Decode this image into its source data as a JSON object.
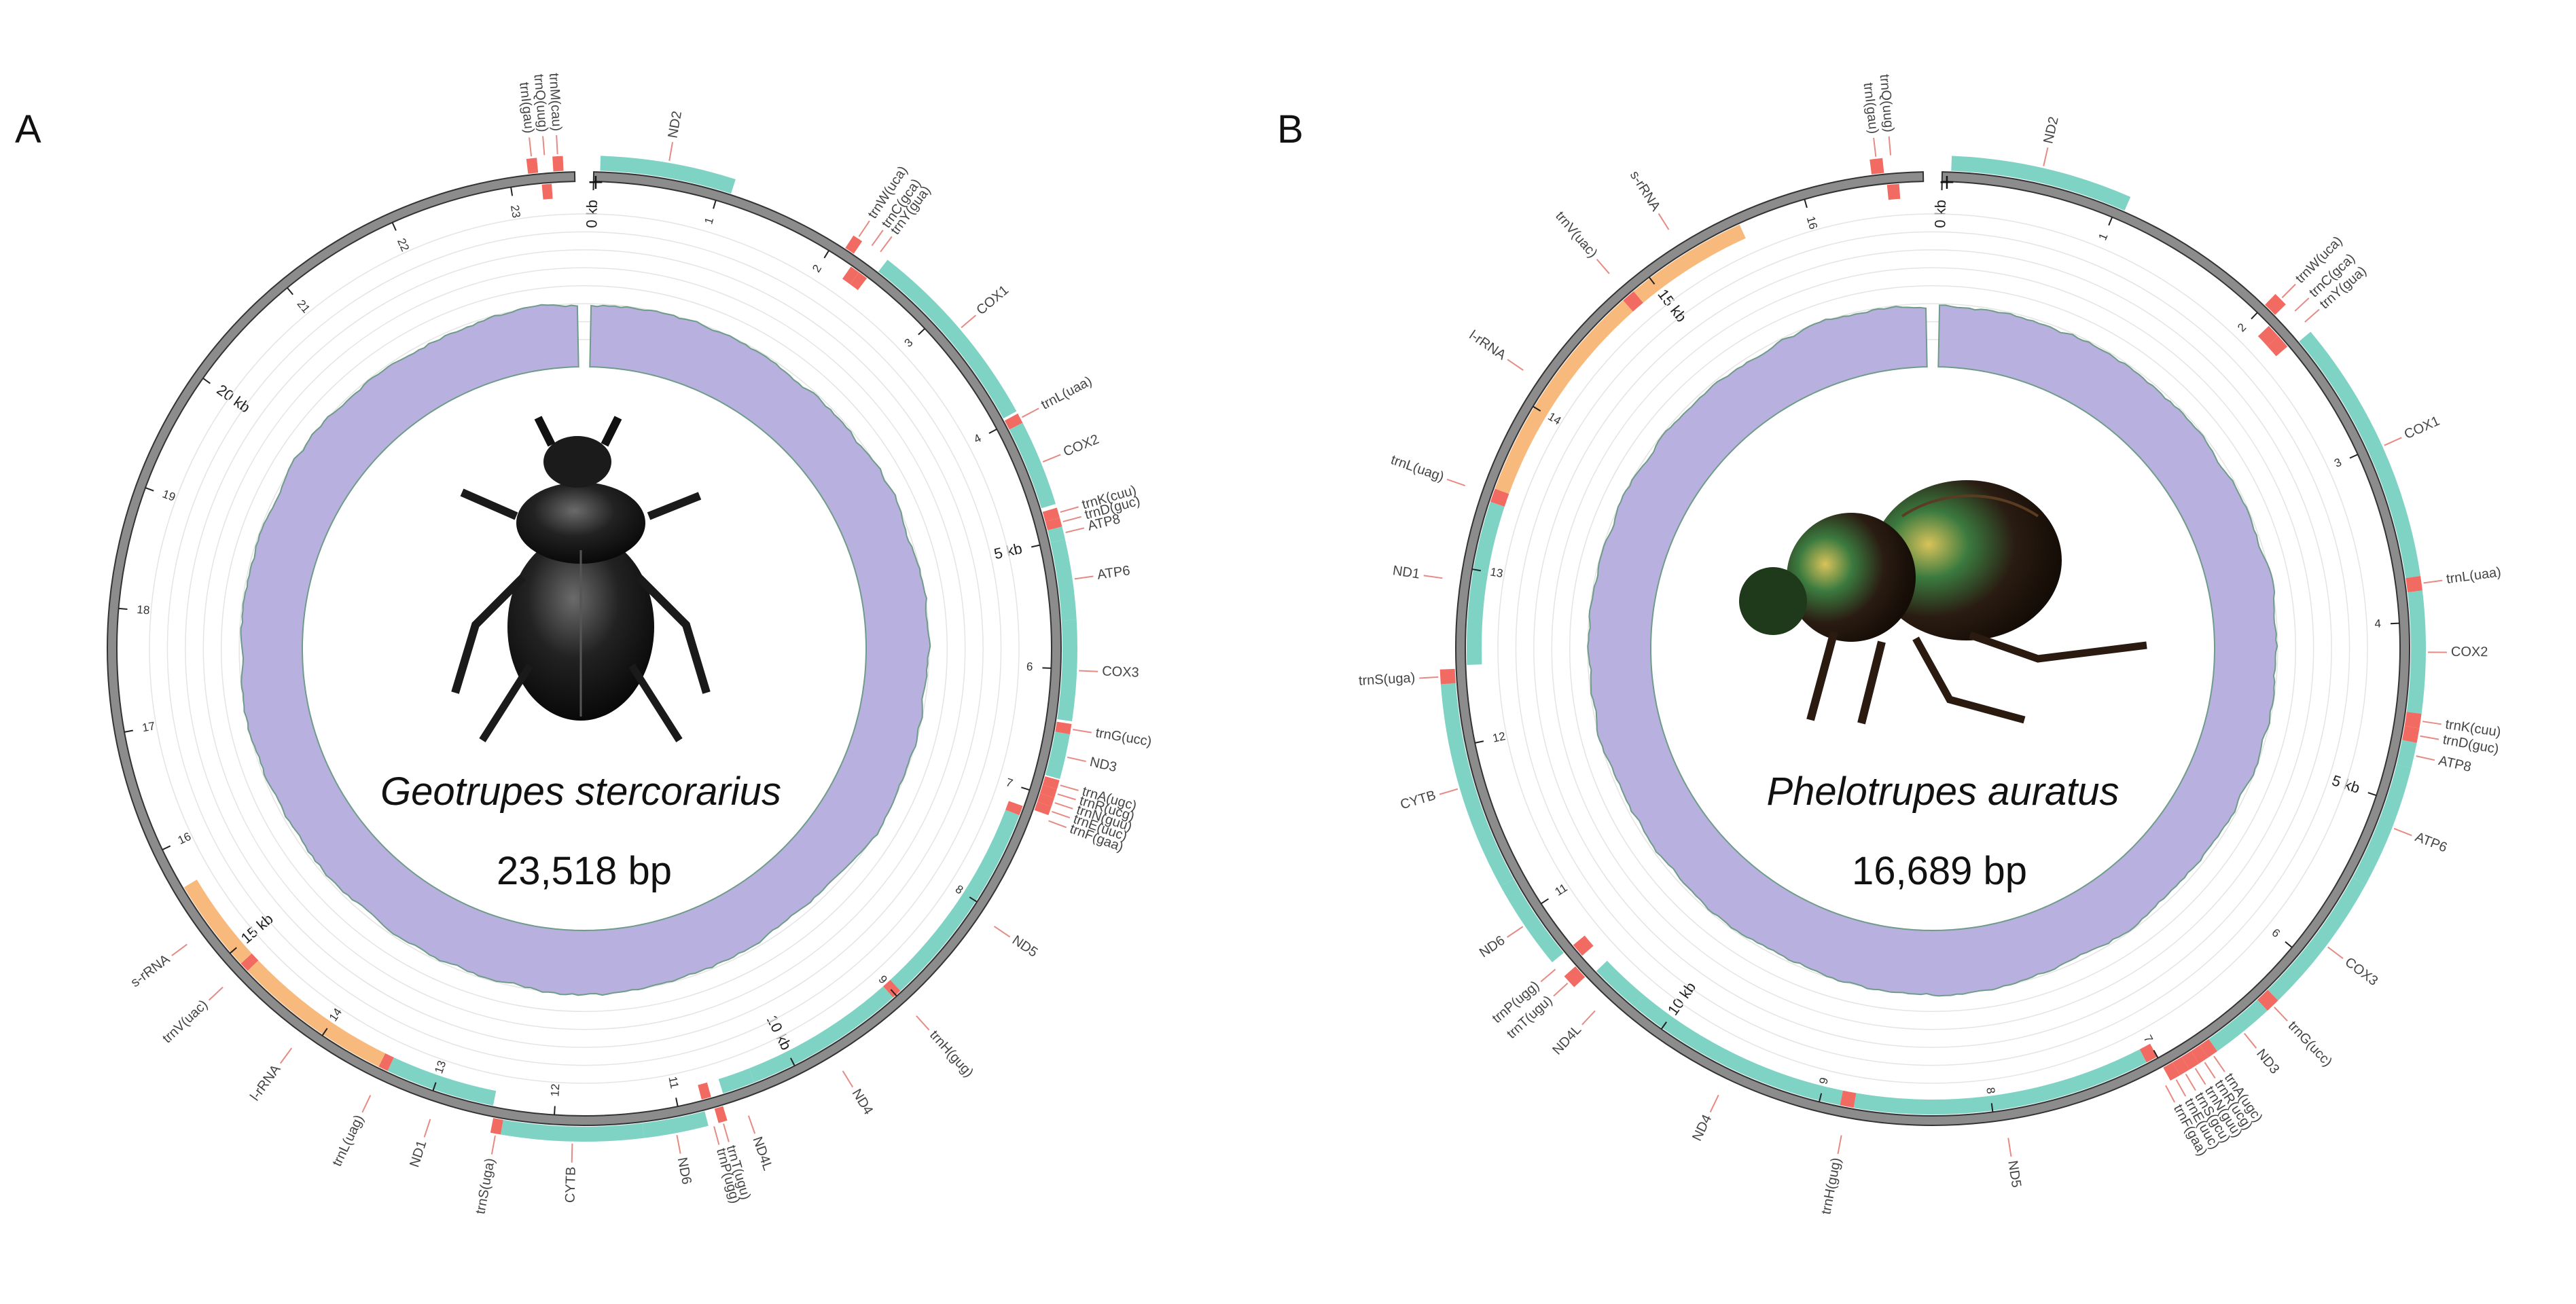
{
  "colors": {
    "pcg": "#7fd3c4",
    "trna": "#f26b62",
    "rrna": "#f7b97c",
    "backbone": "#8c8c8c",
    "coverage": "#b8b0de",
    "coverage_edge": "#6e9c88",
    "label_line": "#e58b84"
  },
  "panels": [
    {
      "letter": "A",
      "species": "Geotrupes stercorarius",
      "size_label": "23,518 bp",
      "strand_symbol": "+",
      "genome_kb": 23.518,
      "beetle_icon": "black-dung-beetle-photo",
      "scale_ticks": [
        "1",
        "2",
        "3",
        "4",
        "5 kb",
        "6",
        "7",
        "8",
        "9",
        "10 kb",
        "11",
        "12",
        "13",
        "14",
        "15 kb",
        "16",
        "17",
        "18",
        "19",
        "20 kb",
        "21",
        "22",
        "23",
        "0 kb"
      ],
      "genes": [
        {
          "name": "ND2",
          "type": "pcg",
          "start": 0.05,
          "end": 1.1,
          "strand": "+"
        },
        {
          "name": "trnW(uca)",
          "type": "trna",
          "start": 2.1,
          "end": 2.18,
          "strand": "+"
        },
        {
          "name": "trnC(gca)",
          "type": "trna",
          "start": 2.22,
          "end": 2.3,
          "strand": "-"
        },
        {
          "name": "trnY(gua)",
          "type": "trna",
          "start": 2.3,
          "end": 2.38,
          "strand": "-"
        },
        {
          "name": "COX1",
          "type": "pcg",
          "start": 2.42,
          "end": 3.95,
          "strand": "+"
        },
        {
          "name": "trnL(uaa)",
          "type": "trna",
          "start": 3.97,
          "end": 4.05,
          "strand": "+"
        },
        {
          "name": "COX2",
          "type": "pcg",
          "start": 4.05,
          "end": 4.72,
          "strand": "+"
        },
        {
          "name": "trnK(cuu)",
          "type": "trna",
          "start": 4.75,
          "end": 4.83,
          "strand": "+"
        },
        {
          "name": "trnD(guc)",
          "type": "trna",
          "start": 4.83,
          "end": 4.9,
          "strand": "+"
        },
        {
          "name": "ATP8",
          "type": "pcg",
          "start": 4.9,
          "end": 5.0,
          "strand": "+"
        },
        {
          "name": "ATP6",
          "type": "pcg",
          "start": 5.0,
          "end": 5.62,
          "strand": "+"
        },
        {
          "name": "COX3",
          "type": "pcg",
          "start": 5.62,
          "end": 6.4,
          "strand": "+"
        },
        {
          "name": "trnG(ucc)",
          "type": "trna",
          "start": 6.42,
          "end": 6.5,
          "strand": "+"
        },
        {
          "name": "ND3",
          "type": "pcg",
          "start": 6.5,
          "end": 6.85,
          "strand": "+"
        },
        {
          "name": "trnA(ugc)",
          "type": "trna",
          "start": 6.86,
          "end": 6.93,
          "strand": "+"
        },
        {
          "name": "trnR(ucg)",
          "type": "trna",
          "start": 6.93,
          "end": 7.0,
          "strand": "+"
        },
        {
          "name": "trnN(guu)",
          "type": "trna",
          "start": 7.0,
          "end": 7.07,
          "strand": "+"
        },
        {
          "name": "trnE(uuc)",
          "type": "trna",
          "start": 7.07,
          "end": 7.14,
          "strand": "+"
        },
        {
          "name": "trnF(gaa)",
          "type": "trna",
          "start": 7.14,
          "end": 7.22,
          "strand": "-"
        },
        {
          "name": "ND5",
          "type": "pcg",
          "start": 7.22,
          "end": 8.95,
          "strand": "-"
        },
        {
          "name": "trnH(gug)",
          "type": "trna",
          "start": 8.95,
          "end": 9.03,
          "strand": "-"
        },
        {
          "name": "ND4",
          "type": "pcg",
          "start": 9.03,
          "end": 10.35,
          "strand": "-"
        },
        {
          "name": "ND4L",
          "type": "pcg",
          "start": 10.35,
          "end": 10.62,
          "strand": "-"
        },
        {
          "name": "trnT(ugu)",
          "type": "trna",
          "start": 10.65,
          "end": 10.72,
          "strand": "+"
        },
        {
          "name": "trnP(ugg)",
          "type": "trna",
          "start": 10.72,
          "end": 10.8,
          "strand": "-"
        },
        {
          "name": "ND6",
          "type": "pcg",
          "start": 10.8,
          "end": 11.3,
          "strand": "+"
        },
        {
          "name": "CYTB",
          "type": "pcg",
          "start": 11.3,
          "end": 12.4,
          "strand": "+"
        },
        {
          "name": "trnS(uga)",
          "type": "trna",
          "start": 12.4,
          "end": 12.48,
          "strand": "+"
        },
        {
          "name": "ND1",
          "type": "pcg",
          "start": 12.5,
          "end": 13.4,
          "strand": "-"
        },
        {
          "name": "trnL(uag)",
          "type": "trna",
          "start": 13.4,
          "end": 13.48,
          "strand": "-"
        },
        {
          "name": "l-rRNA",
          "type": "rrna",
          "start": 13.48,
          "end": 14.8,
          "strand": "-"
        },
        {
          "name": "trnV(uac)",
          "type": "trna",
          "start": 14.8,
          "end": 14.88,
          "strand": "-"
        },
        {
          "name": "s-rRNA",
          "type": "rrna",
          "start": 14.88,
          "end": 15.65,
          "strand": "-"
        },
        {
          "name": "trnI(gau)",
          "type": "trna",
          "start": 23.15,
          "end": 23.23,
          "strand": "+"
        },
        {
          "name": "trnQ(uug)",
          "type": "trna",
          "start": 23.25,
          "end": 23.33,
          "strand": "-"
        },
        {
          "name": "trnM(cau)",
          "type": "trna",
          "start": 23.35,
          "end": 23.43,
          "strand": "+"
        }
      ]
    },
    {
      "letter": "B",
      "species": "Phelotrupes auratus",
      "size_label": "16,689  bp",
      "strand_symbol": "+",
      "genome_kb": 16.689,
      "beetle_icon": "metallic-green-dung-beetle-photo",
      "scale_ticks": [
        "1",
        "2",
        "3",
        "4",
        "5 kb",
        "6",
        "7",
        "8",
        "9",
        "10 kb",
        "11",
        "12",
        "13",
        "14",
        "15 kb",
        "16",
        "0 kb"
      ],
      "genes": [
        {
          "name": "ND2",
          "type": "pcg",
          "start": 0.05,
          "end": 1.05,
          "strand": "+"
        },
        {
          "name": "trnW(uca)",
          "type": "trna",
          "start": 2.0,
          "end": 2.08,
          "strand": "+"
        },
        {
          "name": "trnC(gca)",
          "type": "trna",
          "start": 2.1,
          "end": 2.18,
          "strand": "-"
        },
        {
          "name": "trnY(gua)",
          "type": "trna",
          "start": 2.18,
          "end": 2.26,
          "strand": "-"
        },
        {
          "name": "COX1",
          "type": "pcg",
          "start": 2.28,
          "end": 3.75,
          "strand": "+"
        },
        {
          "name": "trnL(uaa)",
          "type": "trna",
          "start": 3.75,
          "end": 3.83,
          "strand": "+"
        },
        {
          "name": "COX2",
          "type": "pcg",
          "start": 3.83,
          "end": 4.5,
          "strand": "+"
        },
        {
          "name": "trnK(cuu)",
          "type": "trna",
          "start": 4.5,
          "end": 4.58,
          "strand": "+"
        },
        {
          "name": "trnD(guc)",
          "type": "trna",
          "start": 4.58,
          "end": 4.66,
          "strand": "+"
        },
        {
          "name": "ATP8",
          "type": "pcg",
          "start": 4.66,
          "end": 4.8,
          "strand": "+"
        },
        {
          "name": "ATP6",
          "type": "pcg",
          "start": 4.8,
          "end": 5.48,
          "strand": "+"
        },
        {
          "name": "COX3",
          "type": "pcg",
          "start": 5.48,
          "end": 6.27,
          "strand": "+"
        },
        {
          "name": "trnG(ucc)",
          "type": "trna",
          "start": 6.27,
          "end": 6.35,
          "strand": "+"
        },
        {
          "name": "ND3",
          "type": "pcg",
          "start": 6.35,
          "end": 6.7,
          "strand": "+"
        },
        {
          "name": "trnA(ugc)",
          "type": "trna",
          "start": 6.7,
          "end": 6.76,
          "strand": "+"
        },
        {
          "name": "trnR(ucg)",
          "type": "trna",
          "start": 6.76,
          "end": 6.82,
          "strand": "+"
        },
        {
          "name": "trnN(guu)",
          "type": "trna",
          "start": 6.82,
          "end": 6.88,
          "strand": "+"
        },
        {
          "name": "trnS(gcu)",
          "type": "trna",
          "start": 6.88,
          "end": 6.94,
          "strand": "+"
        },
        {
          "name": "trnE(uuc)",
          "type": "trna",
          "start": 6.94,
          "end": 7.0,
          "strand": "+"
        },
        {
          "name": "trnF(gaa)",
          "type": "trna",
          "start": 7.0,
          "end": 7.07,
          "strand": "-"
        },
        {
          "name": "ND5",
          "type": "pcg",
          "start": 7.07,
          "end": 8.8,
          "strand": "-"
        },
        {
          "name": "trnH(gug)",
          "type": "trna",
          "start": 8.8,
          "end": 8.88,
          "strand": "-"
        },
        {
          "name": "ND4",
          "type": "pcg",
          "start": 8.88,
          "end": 10.2,
          "strand": "-"
        },
        {
          "name": "ND4L",
          "type": "pcg",
          "start": 10.2,
          "end": 10.5,
          "strand": "-"
        },
        {
          "name": "trnT(ugu)",
          "type": "trna",
          "start": 10.52,
          "end": 10.6,
          "strand": "+"
        },
        {
          "name": "trnP(ugg)",
          "type": "trna",
          "start": 10.62,
          "end": 10.7,
          "strand": "-"
        },
        {
          "name": "ND6",
          "type": "pcg",
          "start": 10.7,
          "end": 11.2,
          "strand": "+"
        },
        {
          "name": "CYTB",
          "type": "pcg",
          "start": 11.2,
          "end": 12.35,
          "strand": "+"
        },
        {
          "name": "trnS(uga)",
          "type": "trna",
          "start": 12.35,
          "end": 12.43,
          "strand": "+"
        },
        {
          "name": "ND1",
          "type": "pcg",
          "start": 12.45,
          "end": 13.4,
          "strand": "-"
        },
        {
          "name": "trnL(uag)",
          "type": "trna",
          "start": 13.4,
          "end": 13.48,
          "strand": "-"
        },
        {
          "name": "l-rRNA",
          "type": "rrna",
          "start": 13.48,
          "end": 14.8,
          "strand": "-"
        },
        {
          "name": "trnV(uac)",
          "type": "trna",
          "start": 14.8,
          "end": 14.88,
          "strand": "-"
        },
        {
          "name": "s-rRNA",
          "type": "rrna",
          "start": 14.88,
          "end": 15.6,
          "strand": "-"
        },
        {
          "name": "trnI(gau)",
          "type": "trna",
          "start": 16.4,
          "end": 16.47,
          "strand": "+"
        },
        {
          "name": "trnQ(uug)",
          "type": "trna",
          "start": 16.48,
          "end": 16.55,
          "strand": "-"
        }
      ]
    }
  ]
}
